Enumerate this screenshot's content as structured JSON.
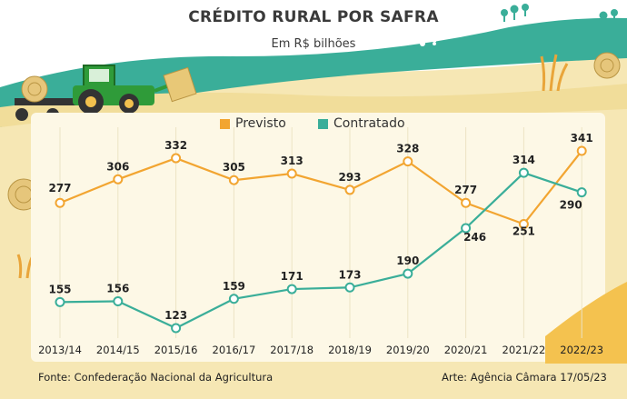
{
  "title": "CRÉDITO RURAL POR SAFRA",
  "subtitle": "Em R$ bilhões",
  "colors": {
    "previsto": "#f2a531",
    "contratado": "#3aae99",
    "sky": "#ffffff",
    "hills": "#3aae99",
    "field": "#f6e7b4",
    "panel": "#fdf8e6"
  },
  "chart_data": {
    "type": "line",
    "categories": [
      "2013/14",
      "2014/15",
      "2015/16",
      "2016/17",
      "2017/18",
      "2018/19",
      "2019/20",
      "2020/21",
      "2021/22",
      "2022/23"
    ],
    "series": [
      {
        "name": "Previsto",
        "values": [
          277,
          306,
          332,
          305,
          313,
          293,
          328,
          277,
          251,
          341
        ]
      },
      {
        "name": "Contratado",
        "values": [
          155,
          156,
          123,
          159,
          171,
          173,
          190,
          246,
          314,
          290
        ]
      }
    ],
    "ylim": [
      100,
      360
    ],
    "grid": "vertical",
    "legend": "top-center"
  },
  "legend": {
    "previsto": "Previsto",
    "contratado": "Contratado"
  },
  "footer": {
    "source": "Fonte: Confederação Nacional da Agricultura",
    "credit": "Arte: Agência Câmara 17/05/23"
  },
  "icons": [
    "tractor-icon",
    "hay-bale-icon",
    "wheat-icon",
    "tree-icon"
  ]
}
